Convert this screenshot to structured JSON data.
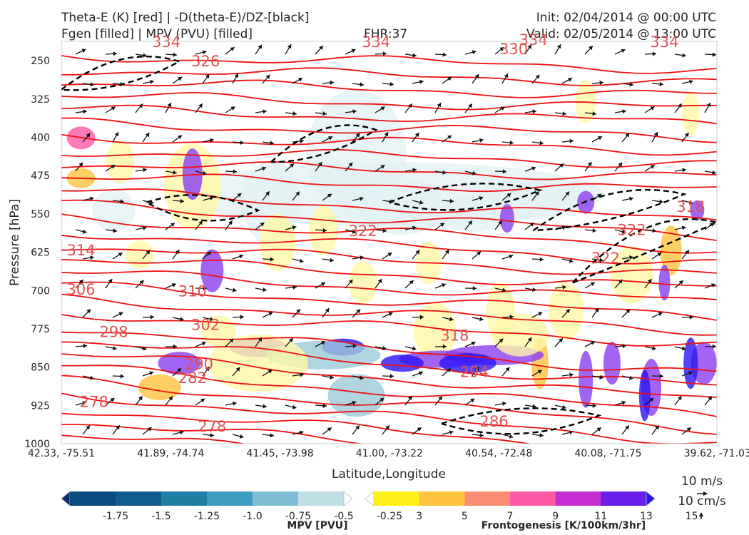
{
  "header": {
    "title_line1": "Theta-E (K) [red] | -D(theta-E)/DZ-[black]",
    "title_line2": "Fgen [filled] | MPV (PVU) [filled]",
    "fhr": "FHR:37",
    "init": "Init: 02/04/2014 @ 00:00 UTC",
    "valid": "Valid: 02/05/2014 @ 13:00 UTC"
  },
  "chart_data": {
    "type": "cross-section",
    "xlabel": "Latitude,Longitude",
    "ylabel": "Pressure [hPa]",
    "x_ticks": [
      "42.33, -75.51",
      "41.89, -74.74",
      "41.45, -73.98",
      "41.00, -73.22",
      "40.54, -72.48",
      "40.08, -71.75",
      "39.62, -71.03"
    ],
    "y_ticks": [
      250,
      325,
      400,
      475,
      550,
      625,
      700,
      775,
      850,
      925,
      1000
    ],
    "ylim": [
      1000,
      250
    ],
    "theta_e_labels": [
      {
        "text": "334",
        "x": 0.16,
        "p": 212,
        "color": "#e05050"
      },
      {
        "text": "334",
        "x": 0.48,
        "p": 212,
        "color": "#e05050"
      },
      {
        "text": "334",
        "x": 0.72,
        "p": 208,
        "color": "#e05050"
      },
      {
        "text": "334",
        "x": 0.92,
        "p": 212,
        "color": "#e05050"
      },
      {
        "text": "330",
        "x": 0.69,
        "p": 226,
        "color": "#e05050"
      },
      {
        "text": "326",
        "x": 0.22,
        "p": 250,
        "color": "#e05050"
      },
      {
        "text": "322",
        "x": 0.46,
        "p": 582,
        "color": "#e05050"
      },
      {
        "text": "322",
        "x": 0.87,
        "p": 580,
        "color": "#e05050"
      },
      {
        "text": "322",
        "x": 0.83,
        "p": 635,
        "color": "#e05050"
      },
      {
        "text": "318",
        "x": 0.96,
        "p": 535,
        "color": "#e05050"
      },
      {
        "text": "318",
        "x": 0.6,
        "p": 787,
        "color": "#e05050"
      },
      {
        "text": "314",
        "x": 0.03,
        "p": 620,
        "color": "#e05050"
      },
      {
        "text": "310",
        "x": 0.2,
        "p": 700,
        "color": "#e05050"
      },
      {
        "text": "306",
        "x": 0.03,
        "p": 697,
        "color": "#e05050"
      },
      {
        "text": "302",
        "x": 0.22,
        "p": 766,
        "color": "#e05050"
      },
      {
        "text": "298",
        "x": 0.08,
        "p": 780,
        "color": "#e05050"
      },
      {
        "text": "294",
        "x": 0.63,
        "p": 858,
        "color": "#e05050"
      },
      {
        "text": "290",
        "x": 0.21,
        "p": 843,
        "color": "#e05050"
      },
      {
        "text": "286",
        "x": 0.66,
        "p": 955,
        "color": "#e05050"
      },
      {
        "text": "282",
        "x": 0.2,
        "p": 870,
        "color": "#e05050"
      },
      {
        "text": "278",
        "x": 0.05,
        "p": 917,
        "color": "#e05050"
      },
      {
        "text": "278",
        "x": 0.23,
        "p": 965,
        "color": "#e05050"
      }
    ],
    "mpv_colorbar": {
      "label": "MPV [PVU]",
      "ticks": [
        "-1.75",
        "-1.5",
        "-1.25",
        "-1.0",
        "-0.75",
        "-0.5",
        "-0.25"
      ],
      "colors": [
        "#08306b",
        "#0b4b7e",
        "#125d8e",
        "#1f7fa4",
        "#3d9dbf",
        "#7fbdd4",
        "#c0dee6",
        "#ffffff"
      ]
    },
    "fgen_colorbar": {
      "label": "Frontogenesis [K/100km/3hr]",
      "ticks": [
        "3",
        "5",
        "7",
        "9",
        "11",
        "13",
        "15"
      ],
      "colors": [
        "#ffffff",
        "#fff01a",
        "#ffc23d",
        "#fa8c73",
        "#ff5aa6",
        "#c42ed2",
        "#6a1fe8",
        "#2a14f5"
      ]
    },
    "wind_key": {
      "h": "10 m/s",
      "v": "10 cm/s"
    }
  }
}
